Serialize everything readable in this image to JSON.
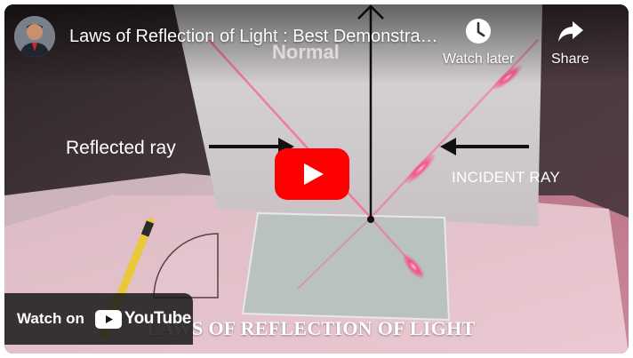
{
  "video": {
    "title": "Laws of Reflection of Light : Best Demonstration...",
    "watch_later_label": "Watch later",
    "share_label": "Share",
    "watch_on_label": "Watch on",
    "youtube_wordmark": "YouTube"
  },
  "frame_annotations": {
    "normal": "Normal",
    "reflected_ray": "Reflected ray",
    "incident_ray": "INCIDENT RAY",
    "caption": "LAWS OF REFLECTION OF LIGHT"
  },
  "icons": {
    "watch_later": "clock-icon",
    "share": "share-arrow-icon",
    "play": "youtube-play-icon",
    "logo": "youtube-logo-icon"
  },
  "colors": {
    "youtube_red": "#ff0000",
    "laser": "#ff3a7a"
  }
}
